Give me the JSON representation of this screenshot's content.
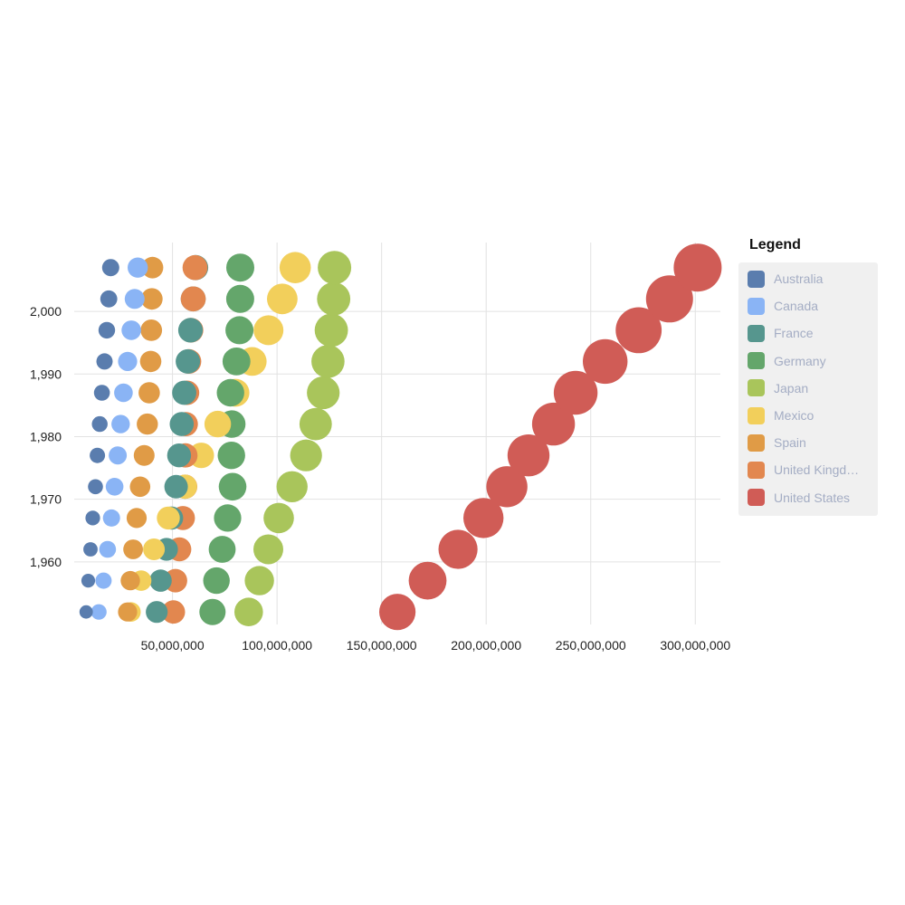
{
  "chart_data": {
    "type": "scatter",
    "subtype": "bubble",
    "title": "",
    "xlabel": "",
    "ylabel": "",
    "xlim": [
      3000000,
      312000000
    ],
    "ylim": [
      1950,
      2011
    ],
    "x_ticks": [
      50000000,
      100000000,
      150000000,
      200000000,
      250000000,
      300000000
    ],
    "x_tick_labels": [
      "50,000,000",
      "100,000,000",
      "150,000,000",
      "200,000,000",
      "250,000,000",
      "300,000,000"
    ],
    "y_ticks": [
      1960,
      1970,
      1980,
      1990,
      2000
    ],
    "y_tick_labels": [
      "1,960",
      "1,970",
      "1,980",
      "1,990",
      "2,000"
    ],
    "grid": "vertical and horizontal",
    "legend_position": "right",
    "legend_title": "Legend",
    "years": [
      1952,
      1957,
      1962,
      1967,
      1972,
      1977,
      1982,
      1987,
      1992,
      1997,
      2002,
      2007
    ],
    "size_encoding": "population",
    "series": [
      {
        "name": "Australia",
        "color": "#5a7dae",
        "values": [
          8691212,
          9712569,
          10794968,
          11872264,
          13177000,
          14074100,
          15184200,
          16257249,
          17481977,
          18565243,
          19546792,
          20434176
        ]
      },
      {
        "name": "Canada",
        "color": "#8ab4f5",
        "values": [
          14785584,
          17010154,
          18985849,
          20819767,
          22284500,
          23796400,
          25201900,
          26549700,
          28523502,
          30305843,
          31902268,
          33390141
        ]
      },
      {
        "name": "France",
        "color": "#56968e",
        "values": [
          42459667,
          44310863,
          47124000,
          49569000,
          51732000,
          53165019,
          54433565,
          55630100,
          57374179,
          58623428,
          59925035,
          61083916
        ]
      },
      {
        "name": "Germany",
        "color": "#64a66b",
        "values": [
          69145952,
          71019069,
          73739117,
          76368453,
          78717088,
          78160773,
          78335266,
          77718298,
          80597764,
          82011073,
          82350671,
          82400996
        ]
      },
      {
        "name": "Japan",
        "color": "#a9c55b",
        "values": [
          86459025,
          91563009,
          95831757,
          100825279,
          107188273,
          113872473,
          118454974,
          122091325,
          124329269,
          125956499,
          127065841,
          127467972
        ]
      },
      {
        "name": "Mexico",
        "color": "#f2cf5b",
        "values": [
          30144317,
          35015548,
          41121485,
          47995559,
          55984294,
          63759976,
          71640904,
          80122492,
          88111030,
          95895146,
          102479927,
          108700891
        ]
      },
      {
        "name": "Spain",
        "color": "#e09b46",
        "values": [
          28549870,
          29841614,
          31158061,
          32850275,
          34513161,
          36439000,
          37983310,
          38880702,
          39549438,
          39855442,
          40152517,
          40448191
        ]
      },
      {
        "name": "United Kingdom",
        "display_label": "United Kingd…",
        "color": "#e2874f",
        "values": [
          50430000,
          51430000,
          53292000,
          54959000,
          56079000,
          56179000,
          56339704,
          56981620,
          57866349,
          58808266,
          59912431,
          60776238
        ]
      },
      {
        "name": "United States",
        "color": "#d05c56",
        "values": [
          157553000,
          171984000,
          186538000,
          198712000,
          209896000,
          220239000,
          232187835,
          242803533,
          256894189,
          272911760,
          287675526,
          301139947
        ]
      }
    ]
  }
}
